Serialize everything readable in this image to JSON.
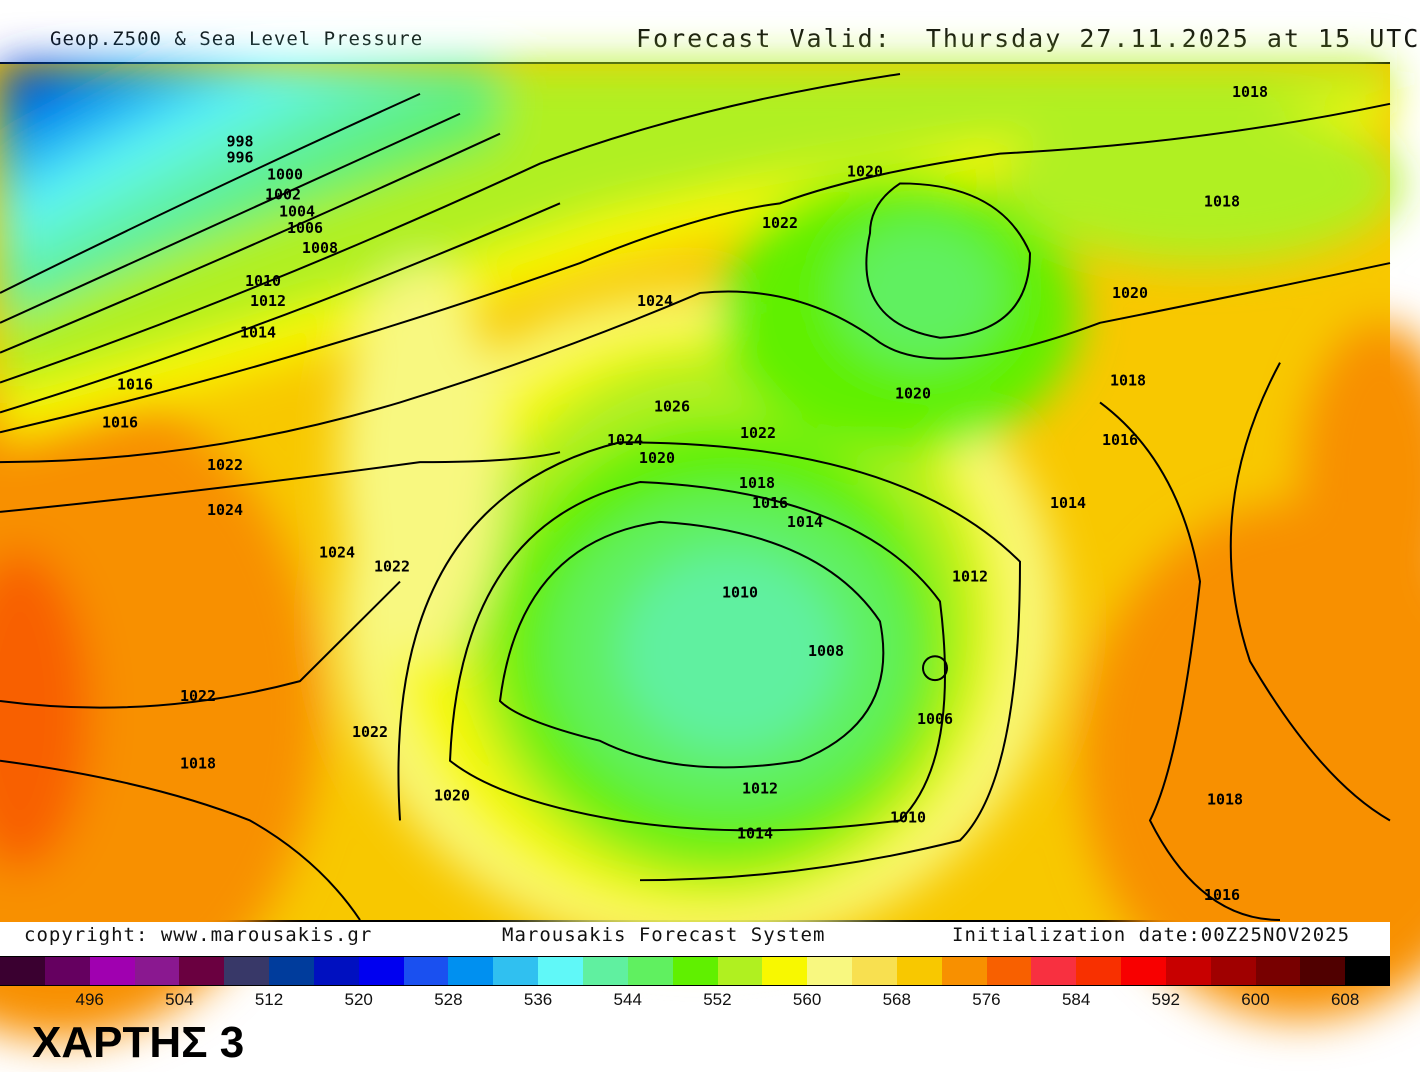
{
  "header": {
    "product": "Geop.Z500 & Sea Level Pressure",
    "forecast_valid": "Forecast Valid:  Thursday 27.11.2025 at 15 UTC"
  },
  "footer": {
    "copyright": "copyright: www.marousakis.gr",
    "system": "Marousakis Forecast System",
    "init": "Initialization date:00Z25NOV2025"
  },
  "map_title": "ΧΑΡΤΗΣ 3",
  "colorbar": {
    "colors": [
      "#3a0030",
      "#650060",
      "#a000b0",
      "#8a1890",
      "#6a0040",
      "#383868",
      "#003c9c",
      "#0010c0",
      "#0000f0",
      "#1a50f0",
      "#0090f0",
      "#30c0f0",
      "#60f8f8",
      "#60f0a0",
      "#60f060",
      "#60f000",
      "#b0f020",
      "#f8f800",
      "#f8f880",
      "#f8e050",
      "#f8c800",
      "#f89000",
      "#f86000",
      "#f83040",
      "#f83000",
      "#f80000",
      "#c80000",
      "#a00000",
      "#780000",
      "#500000",
      "#000000"
    ],
    "tick_labels": [
      "496",
      "504",
      "512",
      "520",
      "528",
      "536",
      "544",
      "552",
      "560",
      "568",
      "576",
      "584",
      "592",
      "600",
      "608"
    ]
  },
  "isobar_labels": [
    "1018",
    "1018",
    "1020",
    "1022",
    "1020",
    "1024",
    "1000",
    "1002",
    "1004",
    "1006",
    "1008",
    "998",
    "996",
    "1010",
    "1012",
    "1014",
    "1016",
    "1016",
    "1022",
    "1024",
    "1024",
    "1022",
    "1026",
    "1022",
    "1024",
    "1020",
    "1020",
    "1018",
    "1016",
    "1014",
    "1018",
    "1016",
    "1014",
    "1012",
    "1010",
    "1008",
    "1006",
    "1022",
    "1018",
    "1022",
    "1020",
    "1012",
    "1014",
    "1010",
    "1018",
    "1016"
  ]
}
